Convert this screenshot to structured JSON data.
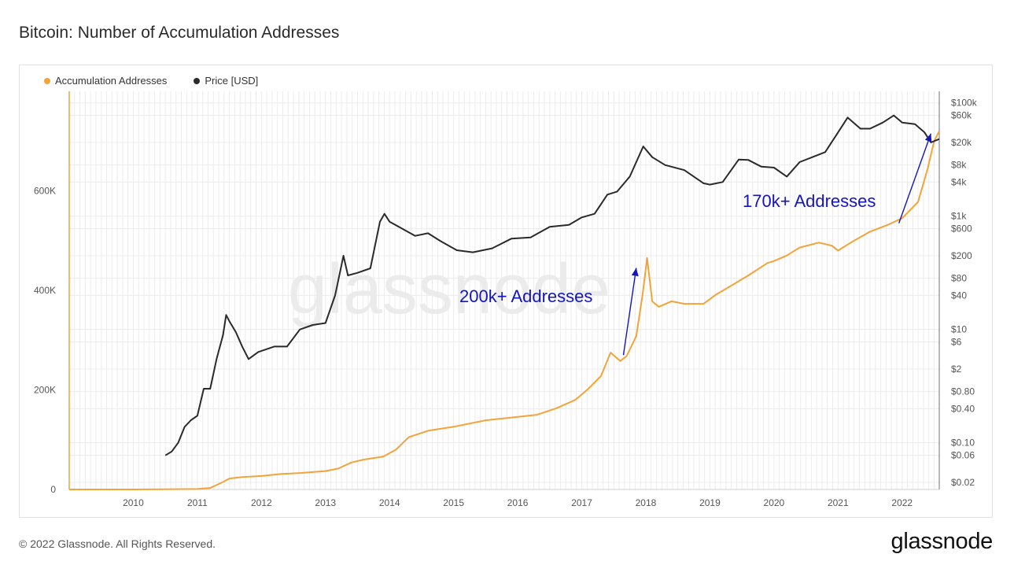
{
  "page": {
    "title": "Bitcoin: Number of Accumulation Addresses",
    "copyright": "© 2022 Glassnode. All Rights Reserved.",
    "brand": "glassnode",
    "watermark": "glassnode"
  },
  "colors": {
    "accumulation": "#f2a33a",
    "price": "#2a2a2a",
    "annotation": "#1515c0",
    "grid": "#ececec"
  },
  "chart_data": {
    "type": "line",
    "title": "Bitcoin: Number of Accumulation Addresses",
    "legend": {
      "placement": "top-left",
      "entries": [
        "Accumulation Addresses",
        "Price [USD]"
      ]
    },
    "x_ticks": [
      "2010",
      "2011",
      "2012",
      "2013",
      "2014",
      "2015",
      "2016",
      "2017",
      "2018",
      "2019",
      "2020",
      "2021",
      "2022"
    ],
    "xlim": [
      "2009-01-03",
      "2022-08-01"
    ],
    "left_axis": {
      "ticks": [
        "0",
        "200K",
        "400K",
        "600K"
      ],
      "tick_values": [
        0,
        200000,
        400000,
        600000
      ],
      "ylim": [
        0,
        800000
      ]
    },
    "right_axis": {
      "scale": "log",
      "ticks": [
        "$0.02",
        "$0.06",
        "$0.10",
        "$0.40",
        "$0.80",
        "$2",
        "$6",
        "$10",
        "$40",
        "$80",
        "$200",
        "$600",
        "$1k",
        "$4k",
        "$8k",
        "$20k",
        "$60k",
        "$100k"
      ],
      "tick_values": [
        0.02,
        0.06,
        0.1,
        0.4,
        0.8,
        2,
        6,
        10,
        40,
        80,
        200,
        600,
        1000,
        4000,
        8000,
        20000,
        60000,
        100000
      ],
      "ylim": [
        0.02,
        100000
      ]
    },
    "grid": true,
    "series": [
      {
        "name": "Accumulation Addresses",
        "axis": "left",
        "x": [
          2009.0,
          2010.0,
          2010.5,
          2011.0,
          2011.2,
          2011.4,
          2011.5,
          2011.7,
          2012.0,
          2012.3,
          2012.6,
          2013.0,
          2013.2,
          2013.4,
          2013.6,
          2013.9,
          2014.1,
          2014.3,
          2014.6,
          2015.0,
          2015.5,
          2016.0,
          2016.3,
          2016.6,
          2016.9,
          2017.1,
          2017.3,
          2017.45,
          2017.6,
          2017.7,
          2017.85,
          2017.95,
          2018.02,
          2018.1,
          2018.2,
          2018.4,
          2018.6,
          2018.9,
          2019.1,
          2019.3,
          2019.6,
          2019.9,
          2020.0,
          2020.2,
          2020.4,
          2020.7,
          2020.9,
          2021.0,
          2021.2,
          2021.5,
          2021.8,
          2022.0,
          2022.1,
          2022.25,
          2022.4,
          2022.5,
          2022.58
        ],
        "values": [
          0,
          0,
          500,
          1000,
          3000,
          15000,
          22000,
          25000,
          27000,
          31000,
          33000,
          37000,
          42000,
          54000,
          60000,
          66000,
          80000,
          105000,
          118000,
          126000,
          139000,
          146000,
          150000,
          163000,
          180000,
          202000,
          228000,
          275000,
          258000,
          268000,
          308000,
          392000,
          465000,
          378000,
          367000,
          378000,
          373000,
          373000,
          392000,
          407000,
          430000,
          455000,
          459000,
          470000,
          486000,
          496000,
          490000,
          480000,
          496000,
          518000,
          533000,
          545000,
          558000,
          578000,
          645000,
          700000,
          720000
        ]
      },
      {
        "name": "Price [USD]",
        "axis": "right",
        "x": [
          2010.5,
          2010.6,
          2010.7,
          2010.8,
          2010.9,
          2011.0,
          2011.1,
          2011.2,
          2011.3,
          2011.4,
          2011.45,
          2011.5,
          2011.6,
          2011.7,
          2011.8,
          2011.95,
          2012.2,
          2012.4,
          2012.6,
          2012.8,
          2013.0,
          2013.15,
          2013.28,
          2013.35,
          2013.5,
          2013.7,
          2013.85,
          2013.92,
          2014.0,
          2014.2,
          2014.4,
          2014.6,
          2014.8,
          2015.05,
          2015.3,
          2015.6,
          2015.9,
          2016.2,
          2016.5,
          2016.8,
          2017.0,
          2017.2,
          2017.4,
          2017.55,
          2017.75,
          2017.96,
          2018.1,
          2018.3,
          2018.6,
          2018.9,
          2019.0,
          2019.2,
          2019.45,
          2019.6,
          2019.8,
          2020.0,
          2020.2,
          2020.4,
          2020.6,
          2020.8,
          2021.0,
          2021.15,
          2021.35,
          2021.5,
          2021.7,
          2021.87,
          2022.0,
          2022.2,
          2022.35,
          2022.45,
          2022.58
        ],
        "values": [
          0.06,
          0.07,
          0.1,
          0.19,
          0.25,
          0.3,
          0.9,
          0.9,
          3,
          8,
          18,
          14,
          9,
          5,
          3,
          4,
          5,
          5,
          10,
          12,
          13,
          40,
          200,
          90,
          100,
          120,
          800,
          1100,
          800,
          600,
          450,
          500,
          360,
          250,
          230,
          270,
          400,
          420,
          650,
          700,
          950,
          1100,
          2400,
          2700,
          5000,
          17000,
          11000,
          8000,
          6500,
          3800,
          3600,
          4000,
          10000,
          9800,
          7500,
          7200,
          5000,
          9000,
          11000,
          13500,
          30000,
          55000,
          35000,
          35000,
          45000,
          60000,
          45000,
          42000,
          30000,
          20000,
          23000
        ]
      }
    ],
    "annotations": [
      {
        "text": "200k+ Addresses",
        "arrow_from": [
          2017.65,
          270000
        ],
        "arrow_to": [
          2017.85,
          445000
        ]
      },
      {
        "text": "170k+ Addresses",
        "arrow_from": [
          2021.95,
          535000
        ],
        "arrow_to": [
          2022.45,
          715000
        ]
      }
    ]
  }
}
